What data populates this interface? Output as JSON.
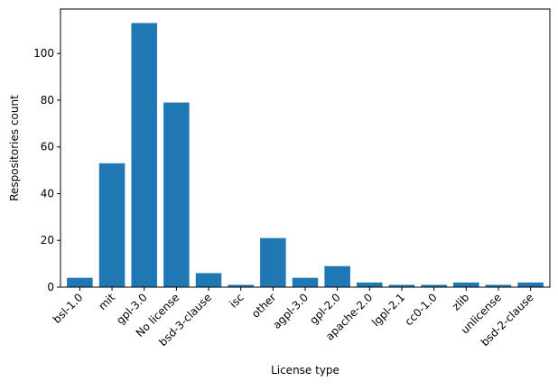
{
  "chart_data": {
    "type": "bar",
    "title": "",
    "xlabel": "License type",
    "ylabel": "Respositories count",
    "categories": [
      "bsl-1.0",
      "mit",
      "gpl-3.0",
      "No license",
      "bsd-3-clause",
      "isc",
      "other",
      "agpl-3.0",
      "gpl-2.0",
      "apache-2.0",
      "lgpl-2.1",
      "cc0-1.0",
      "zlib",
      "unlicense",
      "bsd-2-clause"
    ],
    "values": [
      4,
      53,
      113,
      79,
      6,
      1,
      21,
      4,
      9,
      2,
      1,
      1,
      2,
      1,
      2
    ],
    "ylim": [
      0,
      119
    ],
    "yticks": [
      0,
      20,
      40,
      60,
      80,
      100
    ],
    "bar_color": "#1f77b4",
    "grid": false
  }
}
